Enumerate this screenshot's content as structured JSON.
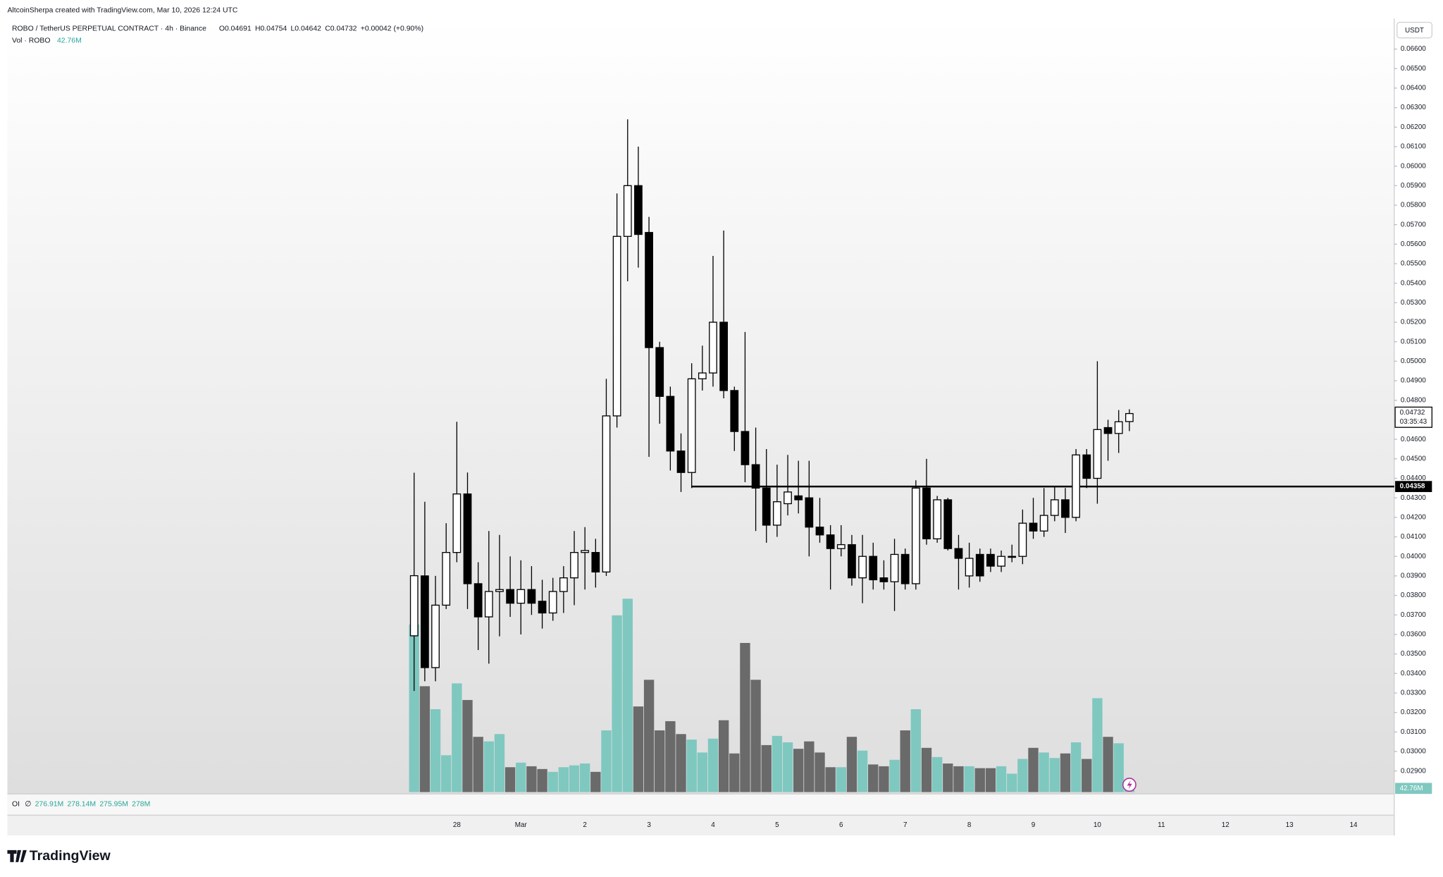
{
  "header": "AltcoinSherpa created with TradingView.com, Mar 10, 2026 12:24 UTC",
  "footer_logo": "TradingView",
  "chart_data": {
    "type": "candlestick",
    "title": "ROBO / TetherUS PERPETUAL CONTRACT · 4h · Binance",
    "ohlc_legend": [
      "O0.04691",
      "H0.04754",
      "L0.04642",
      "C0.04732",
      "+0.00042 (+0.90%)"
    ],
    "currency": "USDT",
    "countdown": "03:35:43",
    "categories": [
      null,
      null,
      null,
      null,
      "28",
      null,
      null,
      null,
      null,
      null,
      "Mar",
      null,
      null,
      null,
      null,
      null,
      "2",
      null,
      null,
      null,
      null,
      null,
      "3",
      null,
      null,
      null,
      null,
      null,
      "4",
      null,
      null,
      null,
      null,
      null,
      "5",
      null,
      null,
      null,
      null,
      null,
      "6",
      null,
      null,
      null,
      null,
      null,
      "7",
      null,
      null,
      null,
      null,
      null,
      "8",
      null,
      null,
      null,
      null,
      null,
      "9",
      null,
      null,
      null,
      null,
      null,
      "10",
      null,
      null,
      null,
      null,
      null,
      "11",
      null,
      null,
      null,
      null,
      null,
      "12",
      null,
      null,
      null,
      null,
      null,
      "13",
      null,
      null,
      null,
      null,
      null,
      "14",
      null,
      null,
      null
    ],
    "series": [
      {
        "name": "ROBO",
        "open": [
          0.03593,
          0.039,
          0.0343,
          0.0375,
          0.0402,
          0.0432,
          0.0386,
          0.0369,
          0.0382,
          0.0383,
          0.0376,
          0.0383,
          0.0377,
          0.0371,
          0.0382,
          0.0389,
          0.0402,
          0.0402,
          0.0392,
          0.0472,
          0.0564,
          0.059,
          0.0566,
          0.0507,
          0.0482,
          0.0454,
          0.0443,
          0.0491,
          0.0494,
          0.052,
          0.0485,
          0.0464,
          0.0447,
          0.0435,
          0.0416,
          0.0427,
          0.0431,
          0.043,
          0.0415,
          0.0411,
          0.0404,
          0.0406,
          0.0389,
          0.04,
          0.0389,
          0.0387,
          0.0401,
          0.0386,
          0.0435,
          0.0409,
          0.0429,
          0.0404,
          0.039,
          0.0401,
          0.0401,
          0.0395,
          0.04,
          0.04,
          0.0417,
          0.0413,
          0.0421,
          0.0429,
          0.042,
          0.0452,
          0.044,
          0.0466,
          0.0463,
          0.04691,
          null,
          null,
          null,
          null,
          null,
          null,
          null,
          null,
          null,
          null,
          null,
          null,
          null,
          null,
          null,
          null,
          null,
          null,
          null,
          null,
          null,
          null,
          null,
          null
        ],
        "high": [
          0.04429,
          0.0428,
          0.039,
          0.0417,
          0.0469,
          0.0443,
          0.0397,
          0.0413,
          0.0411,
          0.04,
          0.0398,
          0.0395,
          0.0388,
          0.0389,
          0.0395,
          0.0413,
          0.0415,
          0.0409,
          0.0491,
          0.0586,
          0.0624,
          0.061,
          0.0574,
          0.051,
          0.0487,
          0.0463,
          0.0499,
          0.0508,
          0.0554,
          0.0567,
          0.0487,
          0.0515,
          0.0466,
          0.0455,
          0.0447,
          0.0452,
          0.0449,
          0.0449,
          0.043,
          0.0416,
          0.0416,
          0.0411,
          0.0411,
          0.0407,
          0.0398,
          0.0409,
          0.0404,
          0.0439,
          0.045,
          0.0431,
          0.043,
          0.0411,
          0.0407,
          0.0404,
          0.0404,
          0.0403,
          0.0406,
          0.0424,
          0.043,
          0.0435,
          0.0436,
          0.0435,
          0.0455,
          0.0455,
          0.05,
          0.047,
          0.0475,
          0.04754,
          null,
          null,
          null,
          null,
          null,
          null,
          null,
          null,
          null,
          null,
          null,
          null,
          null,
          null,
          null,
          null,
          null,
          null,
          null,
          null,
          null,
          null,
          null,
          null
        ],
        "low": [
          0.0331,
          0.0336,
          0.0336,
          0.0373,
          0.0397,
          0.0373,
          0.0352,
          0.0345,
          0.0359,
          0.0369,
          0.036,
          0.037,
          0.0363,
          0.0367,
          0.0371,
          0.0375,
          0.0383,
          0.0384,
          0.039,
          0.0466,
          0.0541,
          0.0548,
          0.0451,
          0.0468,
          0.0444,
          0.0433,
          0.0435,
          0.0485,
          0.0487,
          0.0481,
          0.0454,
          0.0438,
          0.0413,
          0.0407,
          0.041,
          0.0421,
          0.0422,
          0.04,
          0.0407,
          0.0383,
          0.04,
          0.0385,
          0.0376,
          0.0383,
          0.0383,
          0.0372,
          0.0383,
          0.0383,
          0.0406,
          0.0407,
          0.0403,
          0.0383,
          0.0384,
          0.0387,
          0.0392,
          0.0392,
          0.0397,
          0.0396,
          0.0409,
          0.041,
          0.0418,
          0.0412,
          0.0418,
          0.0435,
          0.0427,
          0.0449,
          0.0453,
          0.04642,
          null,
          null,
          null,
          null,
          null,
          null,
          null,
          null,
          null,
          null,
          null,
          null,
          null,
          null,
          null,
          null,
          null,
          null,
          null,
          null,
          null,
          null,
          null,
          null
        ],
        "close": [
          0.03901,
          0.0343,
          0.0375,
          0.0402,
          0.0432,
          0.0386,
          0.0369,
          0.0382,
          0.0383,
          0.0376,
          0.0383,
          0.0376,
          0.0371,
          0.0382,
          0.0389,
          0.0402,
          0.0403,
          0.0392,
          0.0472,
          0.0564,
          0.059,
          0.0565,
          0.0507,
          0.0482,
          0.0454,
          0.0443,
          0.0491,
          0.0494,
          0.052,
          0.0485,
          0.0464,
          0.0447,
          0.0435,
          0.0416,
          0.0428,
          0.0433,
          0.0429,
          0.0415,
          0.0411,
          0.0404,
          0.0406,
          0.0389,
          0.04,
          0.0388,
          0.0387,
          0.0401,
          0.0386,
          0.0435,
          0.0409,
          0.0429,
          0.0404,
          0.0399,
          0.0399,
          0.039,
          0.0395,
          0.04,
          0.04,
          0.0417,
          0.0413,
          0.0421,
          0.0429,
          0.042,
          0.0452,
          0.044,
          0.0465,
          0.0463,
          0.0469,
          0.04732,
          null,
          null,
          null,
          null,
          null,
          null,
          null,
          null,
          null,
          null,
          null,
          null,
          null,
          null,
          null,
          null,
          null,
          null,
          null,
          null,
          null,
          null,
          null,
          null
        ],
        "up_color": "#ffffff",
        "down_color": "#000000",
        "wick_color": "#000000"
      }
    ],
    "volume": {
      "name": "Vol · ROBO",
      "up_color": "#7fc8c0",
      "down_color": "#6a6a6a",
      "values": [
        1947,
        1230,
        963,
        428,
        1263,
        1070,
        642,
        589,
        674,
        289,
        342,
        300,
        268,
        235,
        289,
        310,
        332,
        235,
        717,
        2054,
        2247,
        995,
        1305,
        717,
        824,
        674,
        610,
        460,
        621,
        835,
        449,
        1733,
        1305,
        546,
        653,
        578,
        503,
        589,
        460,
        289,
        289,
        642,
        482,
        321,
        300,
        375,
        717,
        963,
        514,
        407,
        332,
        300,
        300,
        278,
        278,
        300,
        214,
        385,
        514,
        460,
        396,
        449,
        578,
        385,
        1091,
        642,
        567,
        42.76,
        null,
        null,
        null,
        null,
        null,
        null,
        null,
        null,
        null,
        null,
        null,
        null,
        null,
        null,
        null,
        null,
        null,
        null,
        null,
        null,
        null,
        null,
        null,
        null
      ],
      "value_labels": [
        null,
        null,
        null,
        null,
        null,
        null,
        null,
        null,
        null,
        null,
        null,
        null,
        null,
        null,
        null,
        null,
        null,
        null,
        null,
        null,
        null,
        null,
        null,
        null,
        null,
        null,
        null,
        null,
        null,
        null,
        null,
        null,
        null,
        null,
        null,
        null,
        null,
        null,
        null,
        null,
        null,
        null,
        null,
        null,
        null,
        null,
        null,
        null,
        null,
        null,
        null,
        null,
        null,
        null,
        null,
        null,
        null,
        null,
        null,
        null,
        null,
        null,
        null,
        null,
        null,
        null,
        null,
        "42.76M",
        null,
        null,
        null,
        null,
        null,
        null,
        null,
        null,
        null,
        null,
        null,
        null,
        null,
        null,
        null,
        null,
        null,
        null,
        null,
        null,
        null,
        null,
        null,
        null
      ]
    },
    "hline": {
      "value": 0.04358,
      "color": "#000000"
    },
    "ylim": [
      0.02792,
      0.06756
    ],
    "yticks": [
      {
        "value": 0.029,
        "label": "0.02900"
      },
      {
        "value": 0.03,
        "label": "0.03000"
      },
      {
        "value": 0.031,
        "label": "0.03100"
      },
      {
        "value": 0.032,
        "label": "0.03200"
      },
      {
        "value": 0.033,
        "label": "0.03300"
      },
      {
        "value": 0.034,
        "label": "0.03400"
      },
      {
        "value": 0.035,
        "label": "0.03500"
      },
      {
        "value": 0.036,
        "label": "0.03600"
      },
      {
        "value": 0.037,
        "label": "0.03700"
      },
      {
        "value": 0.038,
        "label": "0.03800"
      },
      {
        "value": 0.039,
        "label": "0.03900"
      },
      {
        "value": 0.04,
        "label": "0.04000"
      },
      {
        "value": 0.041,
        "label": "0.04100"
      },
      {
        "value": 0.042,
        "label": "0.04200"
      },
      {
        "value": 0.043,
        "label": "0.04300"
      },
      {
        "value": 0.044,
        "label": "0.04400"
      },
      {
        "value": 0.045,
        "label": "0.04500"
      },
      {
        "value": 0.046,
        "label": "0.04600"
      },
      {
        "value": 0.047,
        "label": "0.04700"
      },
      {
        "value": 0.048,
        "label": "0.04800"
      },
      {
        "value": 0.049,
        "label": "0.04900"
      },
      {
        "value": 0.05,
        "label": "0.05000"
      },
      {
        "value": 0.051,
        "label": "0.05100"
      },
      {
        "value": 0.052,
        "label": "0.05200"
      },
      {
        "value": 0.053,
        "label": "0.05300"
      },
      {
        "value": 0.054,
        "label": "0.05400"
      },
      {
        "value": 0.055,
        "label": "0.05500"
      },
      {
        "value": 0.056,
        "label": "0.05600"
      },
      {
        "value": 0.057,
        "label": "0.05700"
      },
      {
        "value": 0.058,
        "label": "0.05800"
      },
      {
        "value": 0.059,
        "label": "0.05900"
      },
      {
        "value": 0.06,
        "label": "0.06000"
      },
      {
        "value": 0.061,
        "label": "0.06100"
      },
      {
        "value": 0.062,
        "label": "0.06200"
      },
      {
        "value": 0.063,
        "label": "0.06300"
      },
      {
        "value": 0.064,
        "label": "0.06400"
      },
      {
        "value": 0.065,
        "label": "0.06500"
      },
      {
        "value": 0.066,
        "label": "0.06600"
      }
    ],
    "grid": false,
    "oi_pane": {
      "title": "OI",
      "symbol": "∅",
      "values": [
        "276.91M",
        "278.14M",
        "275.95M",
        "278M"
      ]
    }
  }
}
